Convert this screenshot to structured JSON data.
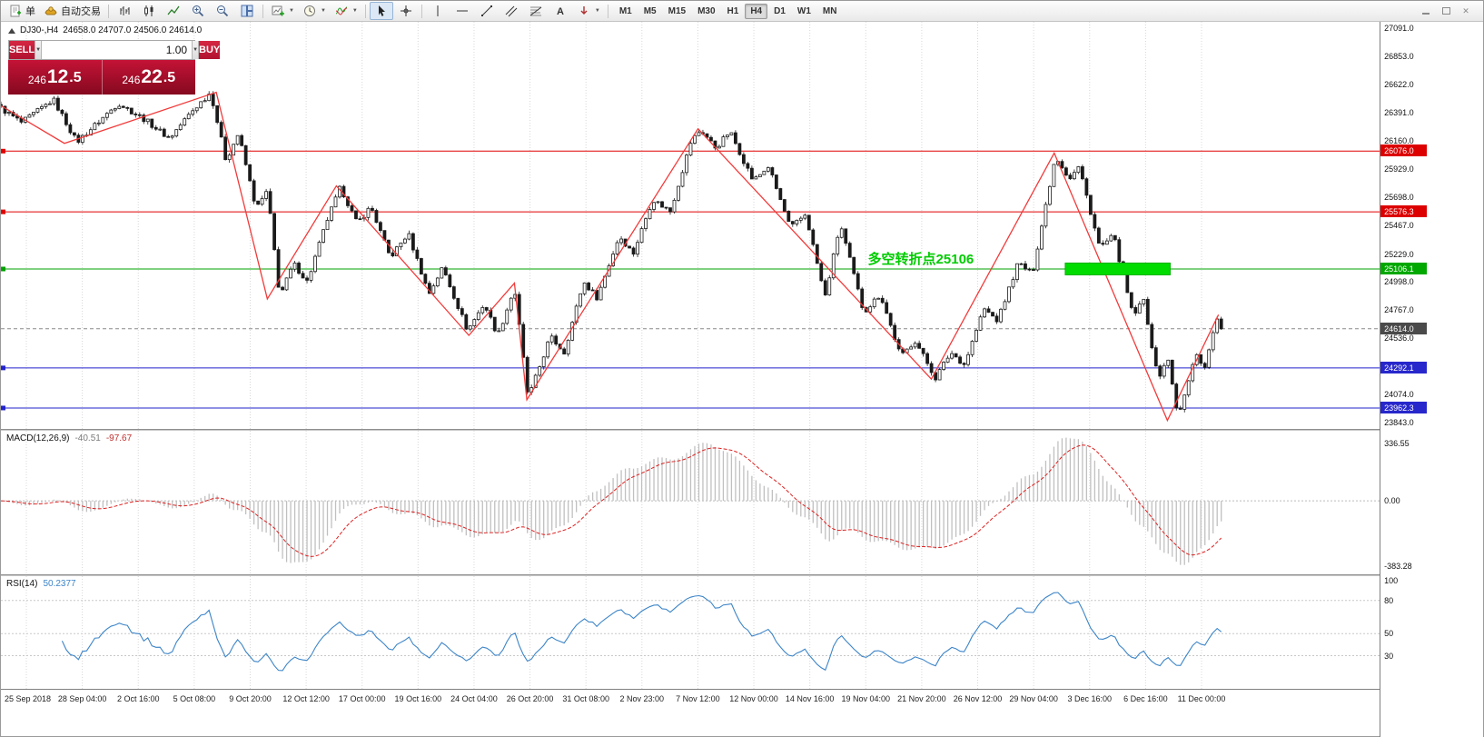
{
  "toolbar": {
    "order_label": "单",
    "autotrade_label": "自动交易",
    "timeframes": [
      "M1",
      "M5",
      "M15",
      "M30",
      "H1",
      "H4",
      "D1",
      "W1",
      "MN"
    ],
    "active_timeframe": "H4"
  },
  "chart": {
    "title": "DJ30-,H4",
    "ohlc": "24658.0 24707.0 24506.0 24614.0"
  },
  "trade_panel": {
    "sell_label": "SELL",
    "buy_label": "BUY",
    "volume": "1.00",
    "sell_price": {
      "prefix": "246",
      "big": "12",
      "suffix": ".5"
    },
    "buy_price": {
      "prefix": "246",
      "big": "22",
      "suffix": ".5"
    }
  },
  "price_axis": {
    "ticks": [
      "27091.0",
      "26853.0",
      "26622.0",
      "26391.0",
      "26160.0",
      "25929.0",
      "25698.0",
      "25467.0",
      "25229.0",
      "24998.0",
      "24767.0",
      "24536.0",
      "24074.0",
      "23843.0"
    ],
    "badges": [
      {
        "value": "26076.0",
        "color": "#dd0000"
      },
      {
        "value": "25576.3",
        "color": "#dd0000"
      },
      {
        "value": "25106.1",
        "color": "#00a800"
      },
      {
        "value": "24614.0",
        "color": "#4a4a4a"
      },
      {
        "value": "24292.1",
        "color": "#2727cc"
      },
      {
        "value": "23962.3",
        "color": "#2727cc"
      }
    ]
  },
  "time_axis": {
    "labels": [
      "25 Sep 2018",
      "28 Sep 04:00",
      "2 Oct 16:00",
      "5 Oct 08:00",
      "9 Oct 20:00",
      "12 Oct 12:00",
      "17 Oct 00:00",
      "19 Oct 16:00",
      "24 Oct 04:00",
      "26 Oct 20:00",
      "31 Oct 08:00",
      "2 Nov 23:00",
      "7 Nov 12:00",
      "12 Nov 00:00",
      "14 Nov 16:00",
      "19 Nov 04:00",
      "21 Nov 20:00",
      "26 Nov 12:00",
      "29 Nov 04:00",
      "3 Dec 16:00",
      "6 Dec 16:00",
      "11 Dec 00:00"
    ]
  },
  "chart_data": {
    "type": "candlestick",
    "symbol": "DJ30-",
    "timeframe": "H4",
    "ohlc_display": {
      "open": 24658.0,
      "high": 24707.0,
      "low": 24506.0,
      "close": 24614.0
    },
    "price_range": [
      23790,
      27140
    ],
    "bars": 300,
    "last_xf": 0.884,
    "price_path": [
      [
        0.0,
        26430
      ],
      [
        0.015,
        26310
      ],
      [
        0.038,
        26500
      ],
      [
        0.055,
        26150
      ],
      [
        0.085,
        26470
      ],
      [
        0.105,
        26330
      ],
      [
        0.122,
        26180
      ],
      [
        0.138,
        26400
      ],
      [
        0.152,
        26560
      ],
      [
        0.163,
        26000
      ],
      [
        0.172,
        26220
      ],
      [
        0.185,
        25600
      ],
      [
        0.193,
        25750
      ],
      [
        0.202,
        24880
      ],
      [
        0.212,
        25150
      ],
      [
        0.222,
        25000
      ],
      [
        0.236,
        25500
      ],
      [
        0.246,
        25780
      ],
      [
        0.258,
        25480
      ],
      [
        0.268,
        25620
      ],
      [
        0.282,
        25200
      ],
      [
        0.295,
        25400
      ],
      [
        0.31,
        24900
      ],
      [
        0.32,
        25120
      ],
      [
        0.338,
        24600
      ],
      [
        0.35,
        24820
      ],
      [
        0.36,
        24560
      ],
      [
        0.372,
        24950
      ],
      [
        0.382,
        24040
      ],
      [
        0.398,
        24550
      ],
      [
        0.408,
        24420
      ],
      [
        0.422,
        25000
      ],
      [
        0.432,
        24870
      ],
      [
        0.448,
        25380
      ],
      [
        0.458,
        25230
      ],
      [
        0.472,
        25680
      ],
      [
        0.485,
        25580
      ],
      [
        0.5,
        26160
      ],
      [
        0.507,
        26250
      ],
      [
        0.518,
        26100
      ],
      [
        0.528,
        26240
      ],
      [
        0.545,
        25830
      ],
      [
        0.556,
        25950
      ],
      [
        0.572,
        25440
      ],
      [
        0.583,
        25560
      ],
      [
        0.597,
        24870
      ],
      [
        0.608,
        25480
      ],
      [
        0.625,
        24750
      ],
      [
        0.637,
        24900
      ],
      [
        0.652,
        24380
      ],
      [
        0.662,
        24520
      ],
      [
        0.677,
        24210
      ],
      [
        0.688,
        24420
      ],
      [
        0.698,
        24320
      ],
      [
        0.712,
        24780
      ],
      [
        0.722,
        24680
      ],
      [
        0.737,
        25160
      ],
      [
        0.747,
        25060
      ],
      [
        0.758,
        25700
      ],
      [
        0.764,
        26040
      ],
      [
        0.774,
        25850
      ],
      [
        0.781,
        25950
      ],
      [
        0.796,
        25280
      ],
      [
        0.806,
        25380
      ],
      [
        0.82,
        24720
      ],
      [
        0.828,
        24850
      ],
      [
        0.838,
        24200
      ],
      [
        0.845,
        24380
      ],
      [
        0.853,
        23880
      ],
      [
        0.866,
        24420
      ],
      [
        0.872,
        24280
      ],
      [
        0.88,
        24700
      ],
      [
        0.884,
        24614
      ]
    ],
    "zigzag": [
      [
        0.0,
        26450
      ],
      [
        0.046,
        26140
      ],
      [
        0.156,
        26560
      ],
      [
        0.193,
        24860
      ],
      [
        0.243,
        25790
      ],
      [
        0.339,
        24560
      ],
      [
        0.372,
        24990
      ],
      [
        0.381,
        24030
      ],
      [
        0.505,
        26260
      ],
      [
        0.674,
        24200
      ],
      [
        0.763,
        26060
      ],
      [
        0.845,
        23860
      ],
      [
        0.882,
        24730
      ]
    ],
    "hlines": [
      {
        "price": 26076.0,
        "color": "#e00000",
        "style": "solid"
      },
      {
        "price": 25576.3,
        "color": "#e00000",
        "style": "solid"
      },
      {
        "price": 25106.1,
        "color": "#00a000",
        "style": "solid"
      },
      {
        "price": 24292.1,
        "color": "#2222cc",
        "style": "solid"
      },
      {
        "price": 23962.3,
        "color": "#2222cc",
        "style": "solid"
      },
      {
        "price": 24614.0,
        "color": "#8a8a8a",
        "style": "dashed"
      }
    ],
    "highlight_rect": {
      "x1": 0.771,
      "x2": 0.847,
      "price_low": 25058,
      "price_high": 25155,
      "color": "#00dc00",
      "border": "#00b000"
    },
    "annotation": {
      "text": "多空转折点25106",
      "xf": 0.628,
      "price": 25150,
      "color": "#00cc00"
    },
    "indicators": {
      "macd": {
        "name": "MACD(12,26,9)",
        "value_main": "-40.51",
        "value_signal": "-97.67",
        "axis_labels": [
          "336.55",
          "0.00",
          "-383.28"
        ],
        "axis_range": [
          410,
          -430
        ],
        "histogram_color": "#c0c0c0",
        "signal_color": "#dd2222"
      },
      "rsi": {
        "name": "RSI(14)",
        "value": "50.2377",
        "axis_labels": [
          "100",
          "80",
          "50",
          "30"
        ],
        "levels": [
          80,
          50,
          30
        ],
        "axis_range": [
          102,
          0
        ],
        "line_color": "#3d85c8"
      }
    }
  }
}
